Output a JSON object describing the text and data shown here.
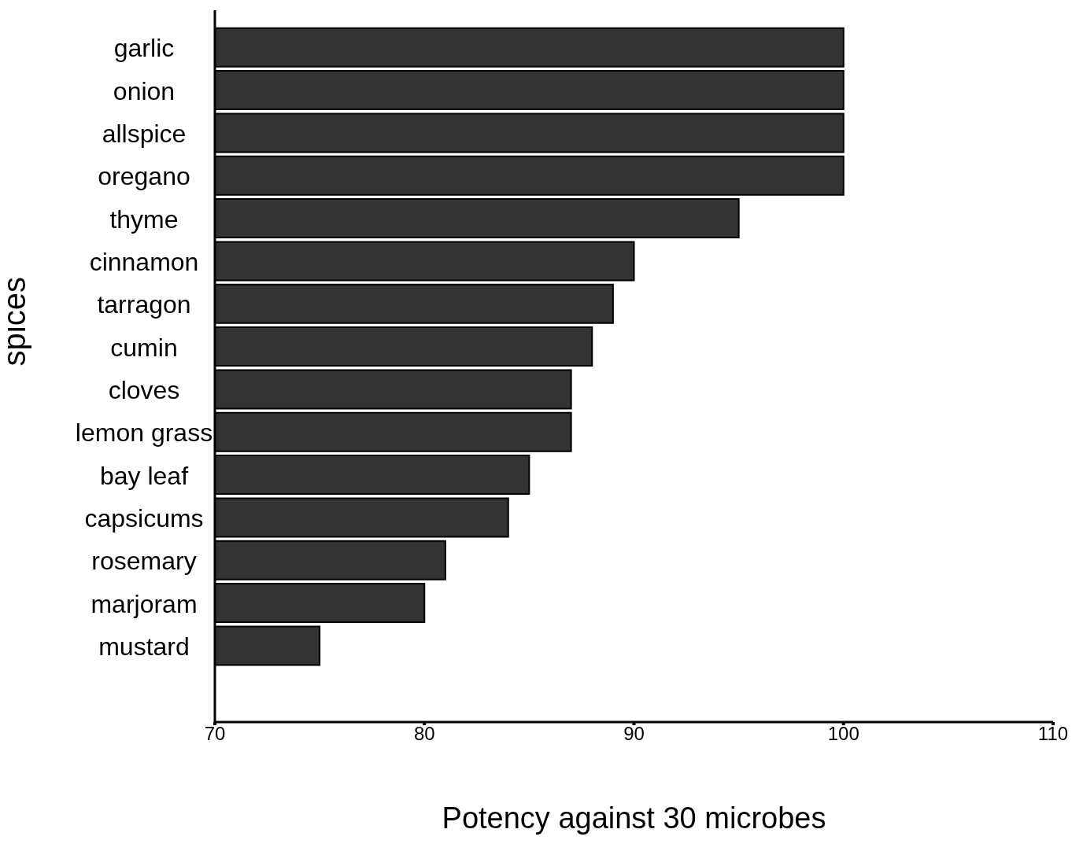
{
  "chart_data": {
    "type": "bar",
    "orientation": "horizontal",
    "xlabel": "Potency against 30 microbes",
    "ylabel": "spices",
    "categories": [
      "garlic",
      "onion",
      "allspice",
      "oregano",
      "thyme",
      "cinnamon",
      "tarragon",
      "cumin",
      "cloves",
      "lemon grass",
      "bay leaf",
      "capsicums",
      "rosemary",
      "marjoram",
      "mustard"
    ],
    "values": [
      100,
      100,
      100,
      100,
      95,
      90,
      89,
      88,
      87,
      87,
      85,
      84,
      81,
      80,
      75
    ],
    "color": "#333333",
    "xlim": [
      70,
      110
    ],
    "xticks": [
      70,
      80,
      90,
      100,
      110
    ],
    "grid": false,
    "legend": false
  }
}
